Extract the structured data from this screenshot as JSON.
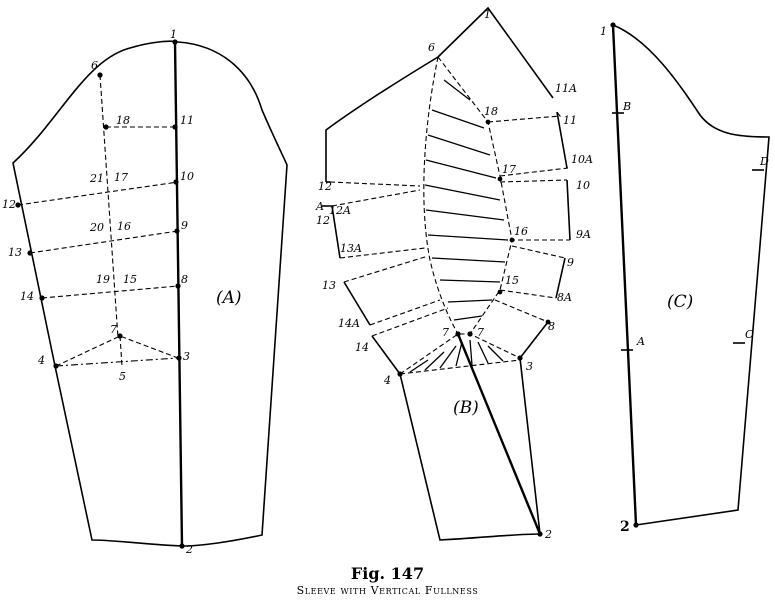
{
  "figure": {
    "title": "Fig. 147",
    "subtitle": "Sleeve with Vertical Fullness"
  },
  "panel_a": {
    "label": "(A)",
    "points": {
      "p1": "1",
      "p2": "2",
      "p3": "3",
      "p4": "4",
      "p5": "5",
      "p6": "6",
      "p7": "7",
      "p8": "8",
      "p9": "9",
      "p10": "10",
      "p11": "11",
      "p12": "12",
      "p13": "13",
      "p14": "14",
      "p15": "15",
      "p16": "16",
      "p17": "17",
      "p18": "18",
      "p19": "19",
      "p20": "20",
      "p21": "21"
    }
  },
  "panel_b": {
    "label": "(B)",
    "points": {
      "p1": "1",
      "p2": "2",
      "p3": "3",
      "p4": "4",
      "p6": "6",
      "p7a": "7",
      "p7b": "7",
      "p8": "8",
      "p8a": "8A",
      "p9": "9",
      "p9a": "9A",
      "p10": "10",
      "p10a": "10A",
      "p11": "11",
      "p11a": "11A",
      "p12": "12",
      "p12b": "12",
      "p12a": "12A",
      "pa": "A",
      "p13": "13",
      "p13a": "13A",
      "p14": "14",
      "p14a": "14A",
      "p15": "15",
      "p16": "16",
      "p17": "17",
      "p18": "18"
    }
  },
  "panel_c": {
    "label": "(C)",
    "points": {
      "p1": "1",
      "p2": "2",
      "pb": "B",
      "pd": "D",
      "pa": "A",
      "pc": "C"
    }
  }
}
